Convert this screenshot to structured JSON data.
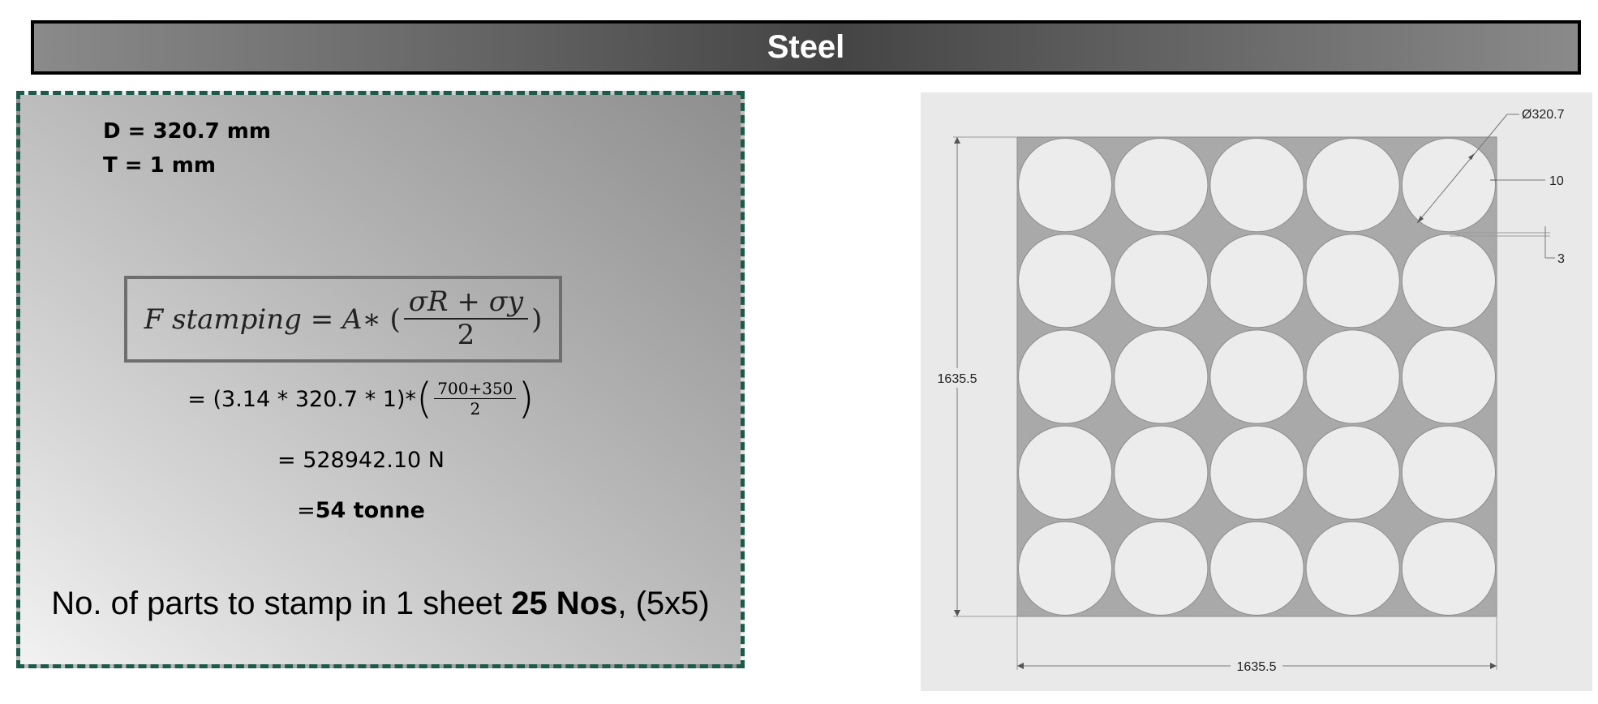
{
  "title": "Steel",
  "params": {
    "diameter": "D = 320.7 mm",
    "thickness": "T = 1 mm"
  },
  "formula": {
    "lhs": "F stamping = A ",
    "operator": "∗ (",
    "numerator": "σR +  σy",
    "denominator": "2",
    "close": ")"
  },
  "calc": {
    "line1_prefix": "= (3.14 * 320.7 * 1)*",
    "line1_numerator": "700+350",
    "line1_denominator": "2",
    "line2": "= 528942.10 N",
    "line3_prefix": "= ",
    "line3_value": "54 tonne"
  },
  "parts": {
    "prefix": "No. of parts to stamp in 1 sheet ",
    "count": "25 Nos",
    "suffix": ", (5x5)"
  },
  "drawing": {
    "sheet_width": "1635.5",
    "sheet_height": "1635.5",
    "circle_diameter": "Ø320.7",
    "edge_gap": "10",
    "web_gap": "3",
    "grid_rows": 5,
    "grid_cols": 5,
    "colors": {
      "sheet": "#a9a9a9",
      "blank": "#ececec",
      "background": "#e9e9e9"
    }
  }
}
